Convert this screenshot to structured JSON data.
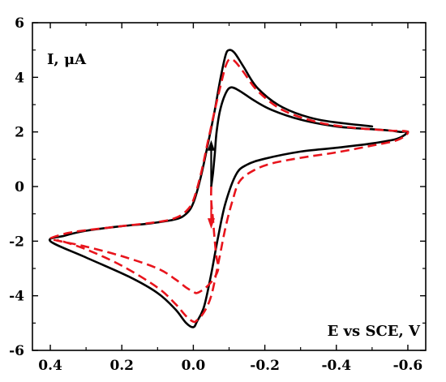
{
  "chart_data": {
    "type": "line",
    "ylabel": "I, μA",
    "xlabel": "E vs SCE, V",
    "x_reversed": true,
    "xlim": [
      0.45,
      -0.65
    ],
    "ylim": [
      -6,
      6
    ],
    "x_ticks": [
      0.4,
      0.2,
      0.0,
      -0.2,
      -0.4,
      -0.6
    ],
    "x_tick_labels": [
      "0.4",
      "0.2",
      "0.0",
      "-0.2",
      "-0.4",
      "-0.6"
    ],
    "y_ticks": [
      -6,
      -4,
      -2,
      0,
      2,
      4,
      6
    ],
    "y_tick_labels": [
      "-6",
      "-4",
      "-2",
      "0",
      "2",
      "4",
      "6"
    ],
    "grid": false,
    "colors": {
      "solid": "#000000",
      "dashed": "#e8141c"
    },
    "series": [
      {
        "style": "solid",
        "points": [
          [
            -0.05,
            0.0
          ],
          [
            -0.055,
            0.5
          ],
          [
            -0.06,
            1.2
          ],
          [
            -0.065,
            2.0
          ],
          [
            -0.075,
            2.8
          ],
          [
            -0.09,
            3.4
          ],
          [
            -0.105,
            3.63
          ],
          [
            -0.13,
            3.5
          ],
          [
            -0.17,
            3.15
          ],
          [
            -0.22,
            2.8
          ],
          [
            -0.3,
            2.45
          ],
          [
            -0.4,
            2.2
          ],
          [
            -0.5,
            2.1
          ],
          [
            -0.55,
            2.05
          ],
          [
            -0.58,
            2.0
          ],
          [
            -0.6,
            2.0
          ],
          [
            -0.57,
            1.75
          ],
          [
            -0.5,
            1.58
          ],
          [
            -0.4,
            1.42
          ],
          [
            -0.3,
            1.28
          ],
          [
            -0.2,
            1.02
          ],
          [
            -0.15,
            0.8
          ],
          [
            -0.12,
            0.45
          ],
          [
            -0.09,
            -0.6
          ],
          [
            -0.07,
            -1.8
          ],
          [
            -0.05,
            -3.2
          ],
          [
            -0.03,
            -4.4
          ],
          [
            -0.01,
            -4.95
          ],
          [
            0.0,
            -5.15
          ],
          [
            0.02,
            -5.0
          ],
          [
            0.05,
            -4.5
          ],
          [
            0.1,
            -3.9
          ],
          [
            0.18,
            -3.3
          ],
          [
            0.3,
            -2.6
          ],
          [
            0.4,
            -2.0
          ],
          [
            0.36,
            -1.8
          ],
          [
            0.3,
            -1.62
          ],
          [
            0.2,
            -1.45
          ],
          [
            0.12,
            -1.35
          ],
          [
            0.05,
            -1.2
          ],
          [
            0.02,
            -1.0
          ],
          [
            0.0,
            -0.6
          ],
          [
            -0.02,
            0.3
          ],
          [
            -0.04,
            1.5
          ],
          [
            -0.06,
            2.8
          ],
          [
            -0.075,
            3.9
          ],
          [
            -0.09,
            4.8
          ],
          [
            -0.1,
            5.0
          ],
          [
            -0.115,
            4.9
          ],
          [
            -0.14,
            4.4
          ],
          [
            -0.18,
            3.6
          ],
          [
            -0.25,
            2.9
          ],
          [
            -0.35,
            2.45
          ],
          [
            -0.5,
            2.2
          ]
        ]
      },
      {
        "style": "dashed",
        "points": [
          [
            -0.05,
            0.0
          ],
          [
            -0.05,
            -0.5
          ],
          [
            -0.055,
            -1.2
          ],
          [
            -0.06,
            -2.0
          ],
          [
            -0.065,
            -2.6
          ],
          [
            -0.07,
            -2.95
          ],
          [
            -0.065,
            -3.2
          ],
          [
            -0.05,
            -3.5
          ],
          [
            -0.03,
            -3.75
          ],
          [
            -0.01,
            -3.9
          ],
          [
            0.0,
            -3.85
          ],
          [
            0.02,
            -3.7
          ],
          [
            0.05,
            -3.4
          ],
          [
            0.1,
            -3.0
          ],
          [
            0.2,
            -2.55
          ],
          [
            0.3,
            -2.2
          ],
          [
            0.38,
            -1.98
          ],
          [
            0.4,
            -1.9
          ],
          [
            0.35,
            -1.7
          ],
          [
            0.3,
            -1.6
          ],
          [
            0.2,
            -1.45
          ],
          [
            0.1,
            -1.3
          ],
          [
            0.05,
            -1.15
          ],
          [
            0.02,
            -0.9
          ],
          [
            0.0,
            -0.5
          ],
          [
            -0.02,
            0.4
          ],
          [
            -0.04,
            1.6
          ],
          [
            -0.06,
            2.8
          ],
          [
            -0.08,
            3.9
          ],
          [
            -0.09,
            4.4
          ],
          [
            -0.1,
            4.65
          ],
          [
            -0.115,
            4.6
          ],
          [
            -0.14,
            4.2
          ],
          [
            -0.18,
            3.5
          ],
          [
            -0.25,
            2.8
          ],
          [
            -0.35,
            2.35
          ],
          [
            -0.45,
            2.15
          ],
          [
            -0.55,
            2.05
          ],
          [
            -0.6,
            2.0
          ],
          [
            -0.57,
            1.7
          ],
          [
            -0.5,
            1.5
          ],
          [
            -0.4,
            1.25
          ],
          [
            -0.3,
            1.05
          ],
          [
            -0.22,
            0.85
          ],
          [
            -0.17,
            0.6
          ],
          [
            -0.13,
            0.2
          ],
          [
            -0.11,
            -0.5
          ],
          [
            -0.09,
            -1.5
          ],
          [
            -0.07,
            -2.8
          ],
          [
            -0.05,
            -4.0
          ],
          [
            -0.03,
            -4.6
          ],
          [
            -0.01,
            -4.9
          ],
          [
            0.0,
            -4.95
          ],
          [
            0.02,
            -4.75
          ],
          [
            0.05,
            -4.3
          ],
          [
            0.1,
            -3.7
          ],
          [
            0.2,
            -2.9
          ],
          [
            0.3,
            -2.3
          ],
          [
            0.38,
            -1.95
          ]
        ]
      }
    ],
    "arrows": [
      {
        "color": "solid",
        "direction": "up",
        "x": -0.05,
        "y_from": 0.0,
        "y_to": 1.7
      },
      {
        "color": "dashed",
        "direction": "down",
        "x": -0.05,
        "y_from": -0.6,
        "y_to": -1.55
      }
    ]
  }
}
